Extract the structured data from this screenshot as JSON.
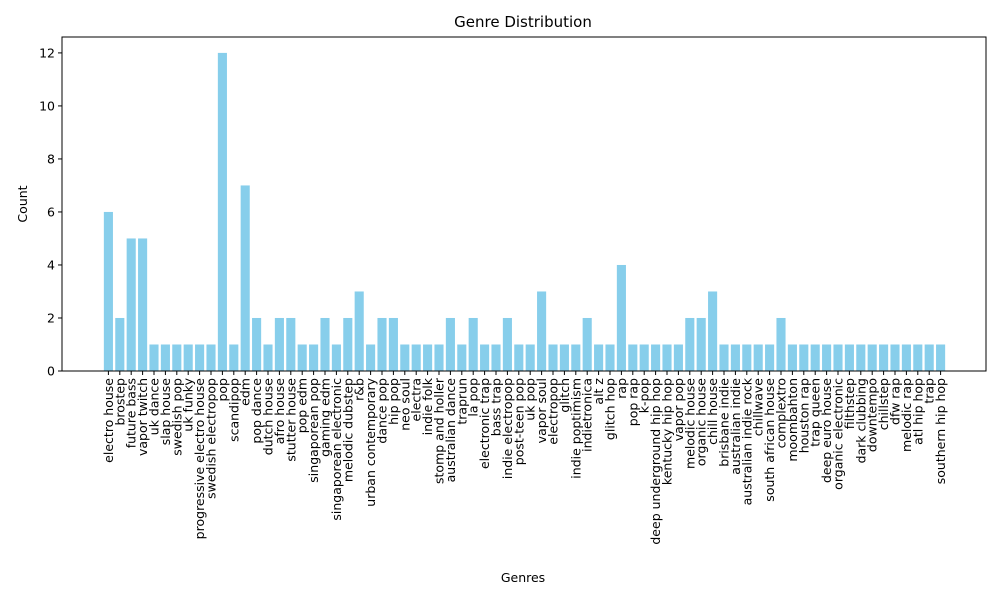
{
  "chart_data": {
    "type": "bar",
    "title": "Genre Distribution",
    "xlabel": "Genres",
    "ylabel": "Count",
    "ylim": [
      0,
      12.6
    ],
    "yticks": [
      0,
      2,
      4,
      6,
      8,
      10,
      12
    ],
    "bar_color": "#87ceeb",
    "grid": false,
    "categories": [
      "electro house",
      "brostep",
      "future bass",
      "vapor twitch",
      "uk dance",
      "slap house",
      "swedish pop",
      "uk funky",
      "progressive electro house",
      "swedish electropop",
      "pop",
      "scandipop",
      "edm",
      "pop dance",
      "dutch house",
      "afro house",
      "stutter house",
      "pop edm",
      "singaporean pop",
      "gaming edm",
      "singaporean electronic",
      "melodic dubstep",
      "r&b",
      "urban contemporary",
      "dance pop",
      "hip pop",
      "neo soul",
      "electra",
      "indie folk",
      "stomp and holler",
      "australian dance",
      "traprun",
      "la pop",
      "electronic trap",
      "bass trap",
      "indie electropop",
      "post-teen pop",
      "uk pop",
      "vapor soul",
      "electropop",
      "glitch",
      "indie poptimism",
      "indietronica",
      "alt z",
      "glitch hop",
      "rap",
      "pop rap",
      "k-pop",
      "deep underground hip hop",
      "kentucky hip hop",
      "vapor pop",
      "melodic house",
      "organic house",
      "chill house",
      "brisbane indie",
      "australian indie",
      "australian indie rock",
      "chillwave",
      "south african house",
      "complextro",
      "moombahton",
      "houston rap",
      "trap queen",
      "deep euro house",
      "organic electronic",
      "filthstep",
      "dark clubbing",
      "downtempo",
      "chillstep",
      "dfw rap",
      "melodic rap",
      "atl hip hop",
      "trap",
      "southern hip hop"
    ],
    "values": [
      6,
      2,
      5,
      5,
      1,
      1,
      1,
      1,
      1,
      1,
      12,
      1,
      7,
      2,
      1,
      2,
      2,
      1,
      1,
      2,
      1,
      2,
      3,
      1,
      2,
      2,
      1,
      1,
      1,
      1,
      2,
      1,
      2,
      1,
      1,
      2,
      1,
      1,
      3,
      1,
      1,
      1,
      2,
      1,
      1,
      4,
      1,
      1,
      1,
      1,
      1,
      2,
      2,
      3,
      1,
      1,
      1,
      1,
      1,
      2,
      1,
      1,
      1,
      1,
      1,
      1,
      1,
      1,
      1,
      1,
      1,
      1,
      1,
      1
    ]
  }
}
